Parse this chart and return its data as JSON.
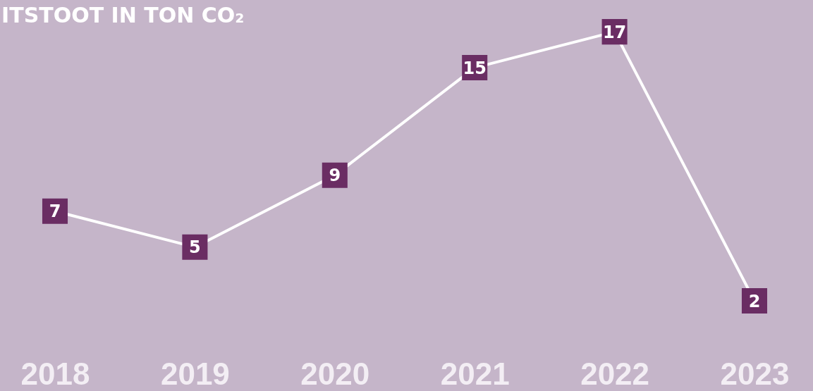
{
  "chart_data": {
    "type": "line",
    "title": "ITSTOOT IN TON CO₂",
    "categories": [
      "2018",
      "2019",
      "2020",
      "2021",
      "2022",
      "2023"
    ],
    "series": [
      {
        "color": "#ffffff",
        "values": [
          7,
          5,
          9,
          15,
          17,
          2
        ]
      }
    ],
    "tick_labels": "x",
    "data_labels": true,
    "marker": "square",
    "grid": false
  }
}
